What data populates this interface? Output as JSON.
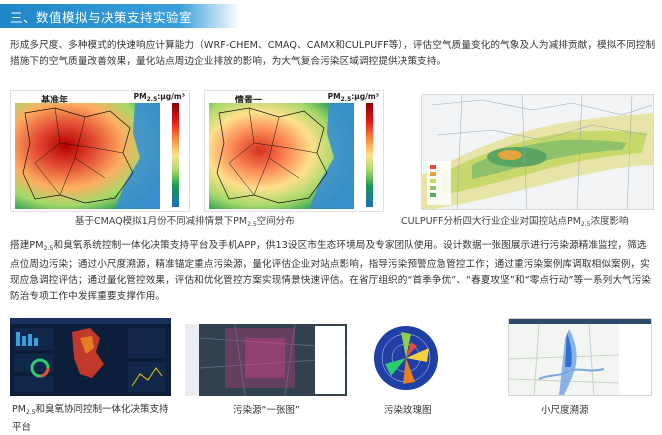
{
  "header": {
    "title": "三、数值模拟与决策支持实验室"
  },
  "intro": "形成多尺度、多种模式的快速响应计算能力（WRF-CHEM、CMAQ、CAMX和CULPUFF等），评估空气质量变化的气象及人为减排贡献，模拟不同控制措施下的空气质量改善效果，量化站点周边企业排放的影响，为大气复合污染区域调控提供决策支持。",
  "maps": {
    "left_label": "基准年",
    "right_label": "情景一",
    "unit_main": "PM",
    "unit_sub": "2.5",
    "unit_tail": ":μg/m³",
    "caption_main": "基于CMAQ模拟1月份不同减排情景下PM",
    "caption_sub": "2.5",
    "caption_tail": "空间分布",
    "puff_caption_main": "CULPUFF分析四大行业企业对国控站点PM",
    "puff_caption_sub": "2.5",
    "puff_caption_tail": "浓度影响"
  },
  "platform": {
    "text_a": "搭建PM",
    "text_sub": "2.5",
    "text_b": "和臭氧系统控制一体化决策支持平台及手机APP，供13设区市生态环境局及专家团队使用。设计数据一张图展示进行污染源精准监控，筛选点位周边污染；通过小尺度溯源，精准锚定重点污染源，量化评估企业对站点影响，指导污染预警应急管控工作；通过重污染案例库调取相似案例，实现应急调控评估；通过量化管控效果，评估和优化管控方案实现情景快速评估。在省厅组织的“首季争优”、“春夏攻坚”和“零点行动”等一系列大气污染防治专项工作中发挥重要支撑作用。"
  },
  "screenshots": {
    "cap1_a": "PM",
    "cap1_sub": "2.5",
    "cap1_b": "和臭氧协同控制一体化决策支持平台",
    "cap2": "污染源“一张图”",
    "cap3": "污染玫瑰图",
    "cap4": "小尺度溯源"
  },
  "colors": {
    "header": "#2a93d3",
    "text": "#333333"
  }
}
